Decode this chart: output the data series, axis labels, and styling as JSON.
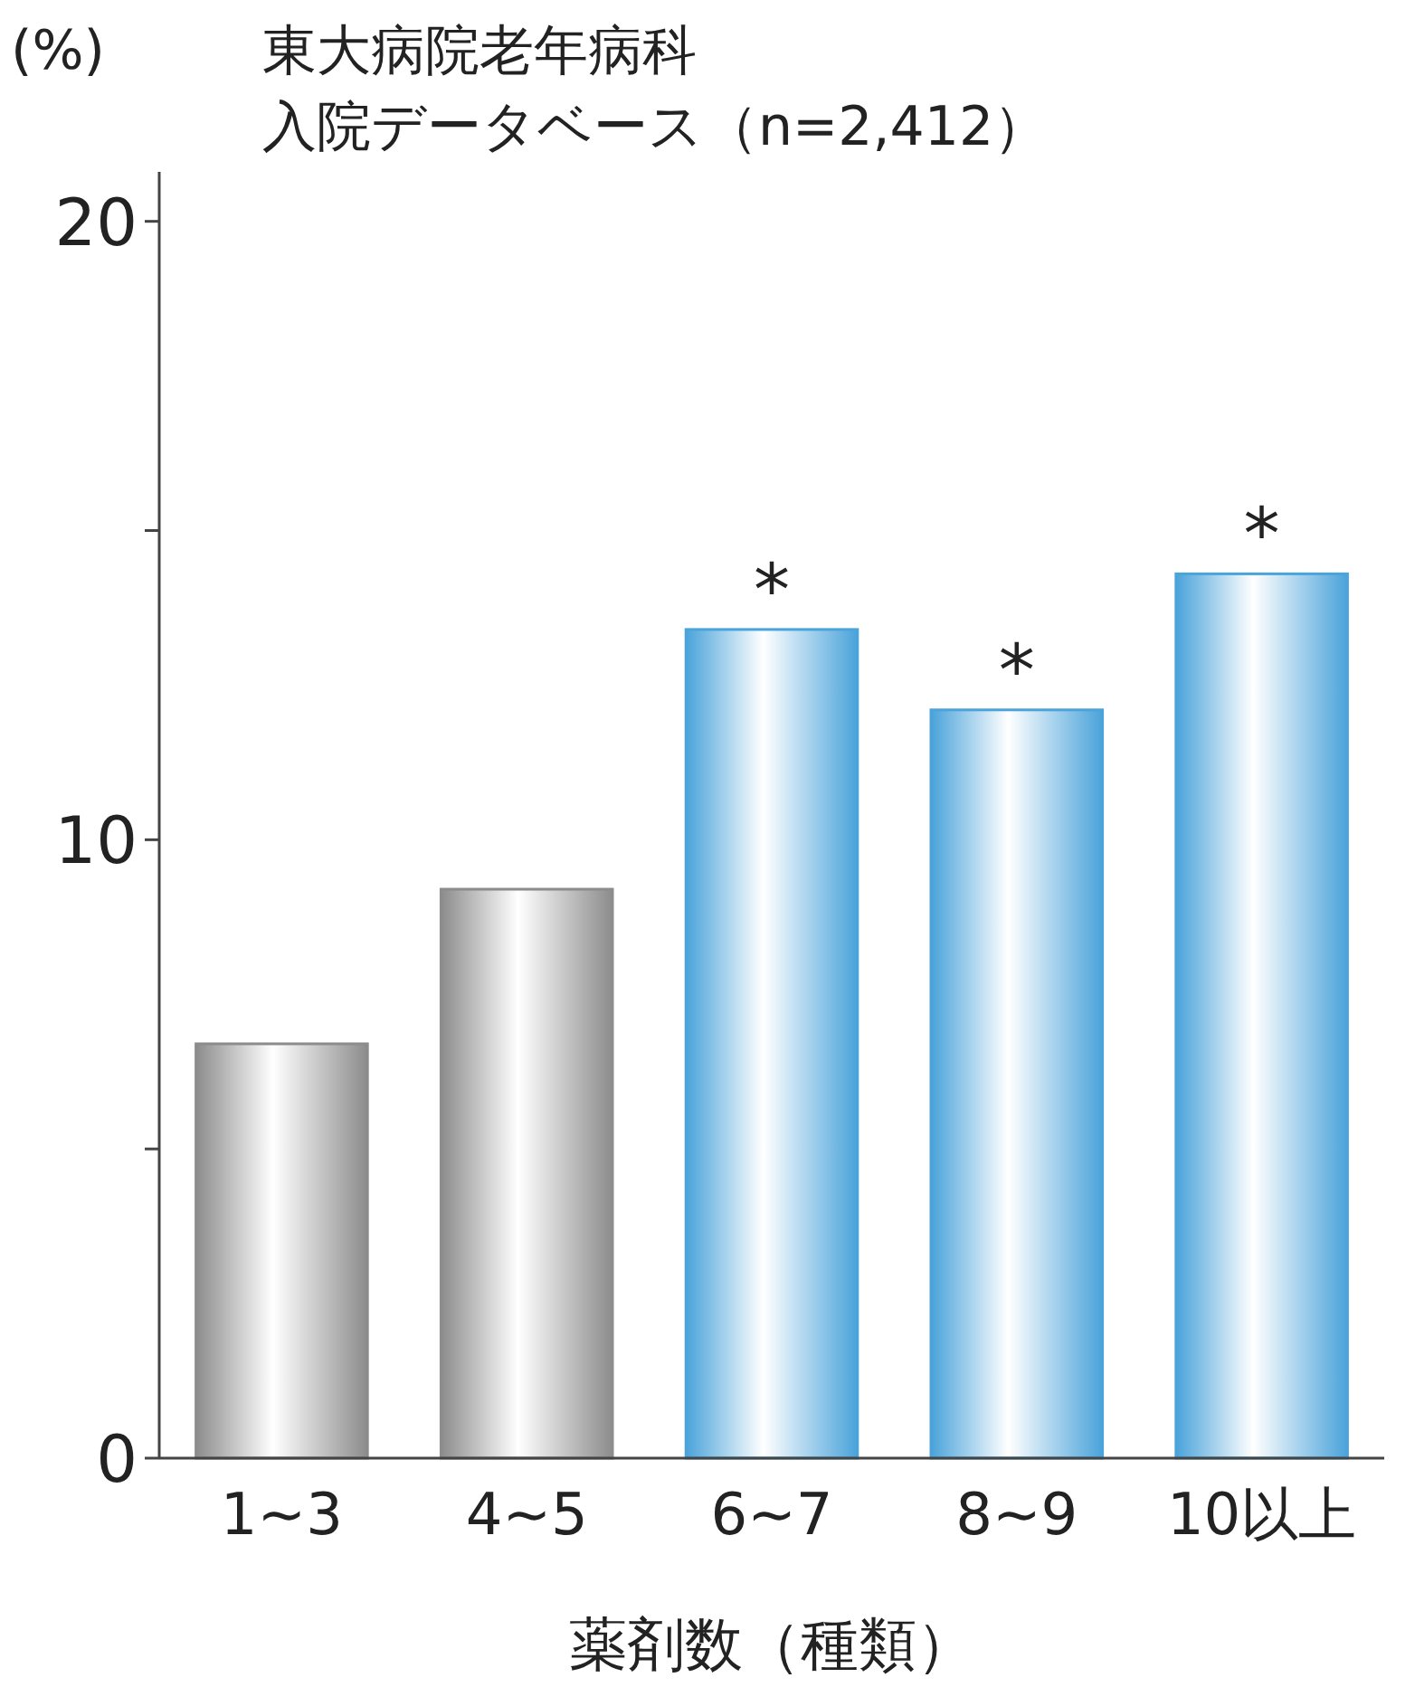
{
  "chart_data": {
    "type": "bar",
    "title": "東大病院老年病科",
    "subtitle": "入院データベース（n=2,412）",
    "ylabel": "(%)",
    "xlabel": "薬剤数（種類）",
    "categories": [
      "1~3",
      "4~5",
      "6~7",
      "8~9",
      "10以上"
    ],
    "values": [
      6.7,
      9.2,
      13.4,
      12.1,
      14.3
    ],
    "colors": [
      "#8c8c8c",
      "#8c8c8c",
      "#4aa3da",
      "#4aa3da",
      "#4aa3da"
    ],
    "ylim": [
      0,
      20.8
    ],
    "yticks": [
      0,
      {
        "value": 5,
        "label": null
      },
      10,
      {
        "value": 15,
        "label": null
      },
      20
    ],
    "annotations": [
      {
        "text": "*",
        "x": "6~7",
        "y": 13.4
      },
      {
        "text": "*",
        "x": "8~9",
        "y": 12.1
      },
      {
        "text": "*",
        "x": "10以上",
        "y": 14.3
      }
    ]
  }
}
